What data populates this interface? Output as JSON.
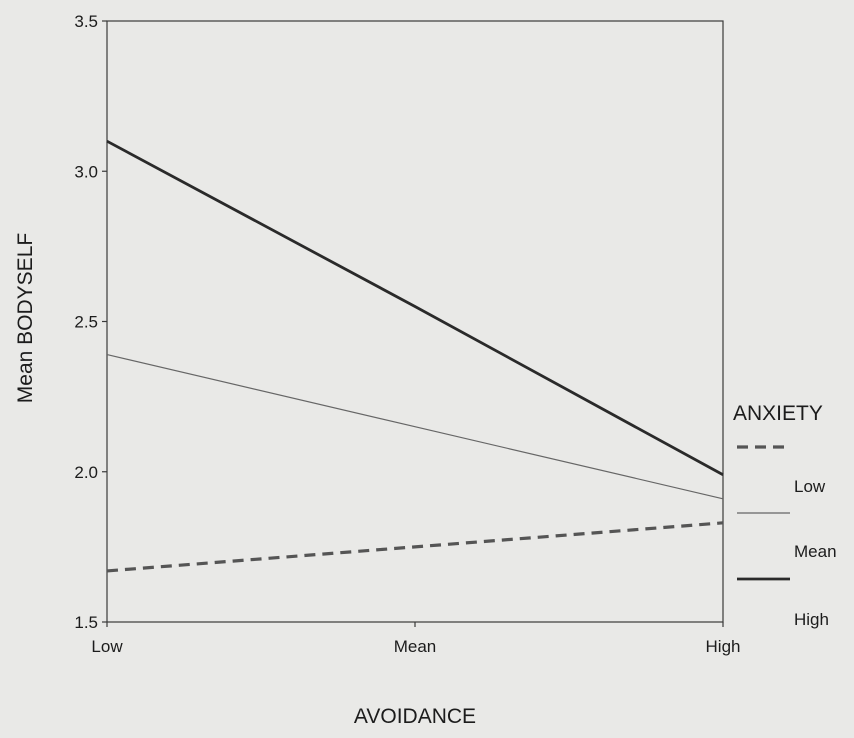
{
  "chart_data": {
    "type": "line",
    "xlabel": "AVOIDANCE",
    "ylabel": "Mean BODYSELF",
    "categories": [
      "Low",
      "Mean",
      "High"
    ],
    "ylim": [
      1.5,
      3.5
    ],
    "yticks": [
      "1.5",
      "2.0",
      "2.5",
      "3.0",
      "3.5"
    ],
    "grid": false,
    "legend": {
      "title": "ANXIETY",
      "placement": "right",
      "labels": [
        "Low",
        "Mean",
        "High"
      ]
    },
    "series": [
      {
        "name": "Low",
        "values": [
          1.67,
          1.75,
          1.83
        ],
        "style": "dashed",
        "color": "#555555"
      },
      {
        "name": "Mean",
        "values": [
          2.39,
          2.15,
          1.91
        ],
        "style": "thin",
        "color": "#666666"
      },
      {
        "name": "High",
        "values": [
          3.1,
          2.55,
          1.99
        ],
        "style": "thick",
        "color": "#2a2a2a"
      }
    ]
  }
}
